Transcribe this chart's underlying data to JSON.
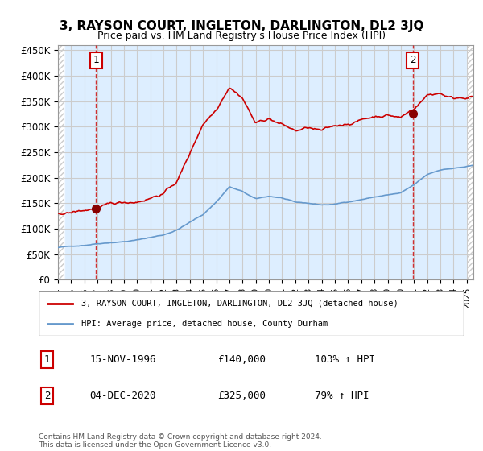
{
  "title": "3, RAYSON COURT, INGLETON, DARLINGTON, DL2 3JQ",
  "subtitle": "Price paid vs. HM Land Registry's House Price Index (HPI)",
  "xlim": [
    1994.0,
    2025.5
  ],
  "ylim": [
    0,
    460000
  ],
  "yticks": [
    0,
    50000,
    100000,
    150000,
    200000,
    250000,
    300000,
    350000,
    400000,
    450000
  ],
  "ytick_labels": [
    "£0",
    "£50K",
    "£100K",
    "£150K",
    "£200K",
    "£250K",
    "£300K",
    "£350K",
    "£400K",
    "£450K"
  ],
  "xtick_years": [
    1994,
    1995,
    1996,
    1997,
    1998,
    1999,
    2000,
    2001,
    2002,
    2003,
    2004,
    2005,
    2006,
    2007,
    2008,
    2009,
    2010,
    2011,
    2012,
    2013,
    2014,
    2015,
    2016,
    2017,
    2018,
    2019,
    2020,
    2021,
    2022,
    2023,
    2024,
    2025
  ],
  "hpi_color": "#6699cc",
  "price_color": "#cc0000",
  "marker_color": "#880000",
  "vline_color": "#cc0000",
  "grid_color": "#cccccc",
  "bg_color": "#ddeeff",
  "hatch_color": "#cccccc",
  "transaction1_year": 1996.88,
  "transaction1_price": 140000,
  "transaction2_year": 2020.92,
  "transaction2_price": 325000,
  "legend_line1": "3, RAYSON COURT, INGLETON, DARLINGTON, DL2 3JQ (detached house)",
  "legend_line2": "HPI: Average price, detached house, County Durham",
  "annotation1_label": "1",
  "annotation2_label": "2",
  "table_rows": [
    [
      "1",
      "15-NOV-1996",
      "£140,000",
      "103% ↑ HPI"
    ],
    [
      "2",
      "04-DEC-2020",
      "£325,000",
      "79% ↑ HPI"
    ]
  ],
  "footer": "Contains HM Land Registry data © Crown copyright and database right 2024.\nThis data is licensed under the Open Government Licence v3.0."
}
